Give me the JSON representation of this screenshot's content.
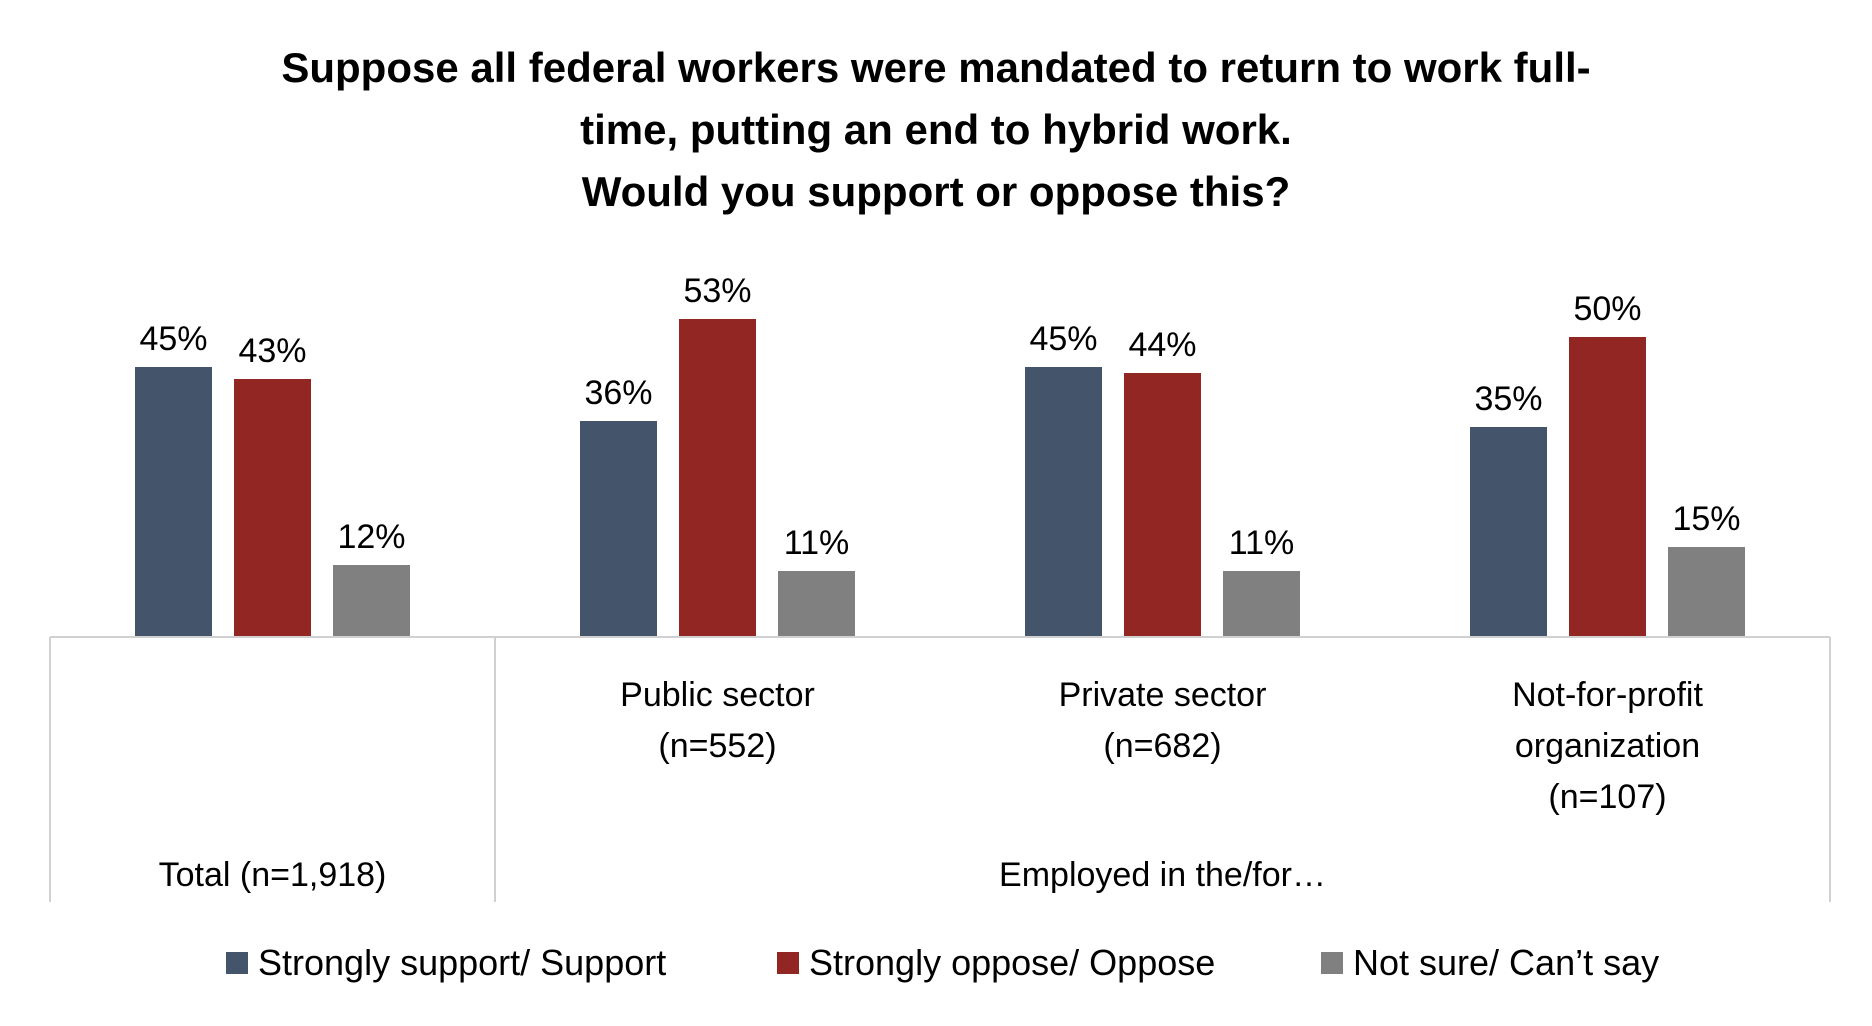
{
  "chart_data": {
    "type": "bar",
    "title_lines": [
      "Suppose all federal workers were mandated to return to work full-",
      "time, putting an end to hybrid work.",
      "Would you support or oppose this?"
    ],
    "categories": [
      {
        "lines": [
          "Total (n=1,918)"
        ]
      },
      {
        "lines": [
          "Public sector",
          "(n=552)"
        ]
      },
      {
        "lines": [
          "Private sector",
          "(n=682)"
        ]
      },
      {
        "lines": [
          "Not-for-profit",
          "organization",
          "(n=107)"
        ]
      }
    ],
    "group_label": "Employed in the/for…",
    "series": [
      {
        "name": "Strongly support/ Support",
        "color": "#44546a",
        "values": [
          45,
          36,
          45,
          35
        ],
        "labels": [
          "45%",
          "36%",
          "45%",
          "35%"
        ]
      },
      {
        "name": "Strongly oppose/ Oppose",
        "color": "#922622",
        "values": [
          43,
          53,
          44,
          50
        ],
        "labels": [
          "43%",
          "53%",
          "44%",
          "50%"
        ]
      },
      {
        "name": "Not sure/ Can’t say",
        "color": "#808080",
        "values": [
          12,
          11,
          11,
          15
        ],
        "labels": [
          "12%",
          "11%",
          "11%",
          "15%"
        ]
      }
    ],
    "ylim": [
      0,
      60
    ],
    "legend_position": "bottom"
  }
}
